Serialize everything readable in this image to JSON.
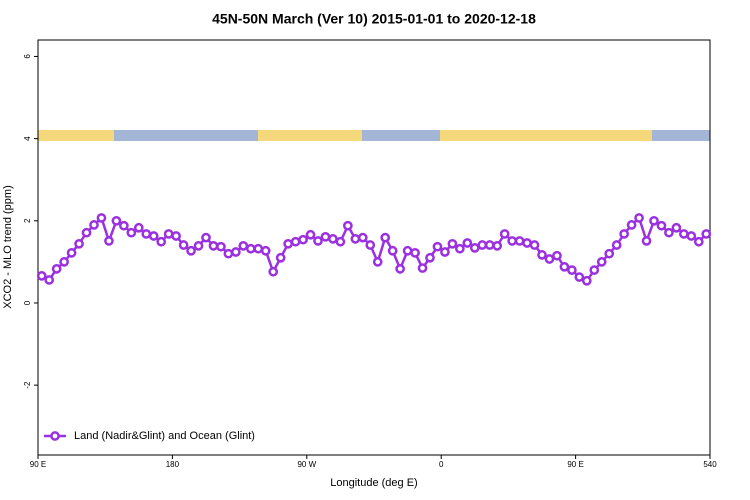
{
  "chart_data": {
    "type": "line",
    "title": "45N-50N March (Ver 10)   2015-01-01 to 2020-12-18",
    "x_label": "Longitude (deg E)",
    "y_label": "XCO2 - MLO trend (ppm)",
    "xlim": [
      90,
      540
    ],
    "ylim": [
      -3.7,
      6.4
    ],
    "xticks": [
      {
        "value": 90,
        "label": "90 E"
      },
      180,
      {
        "value": 270,
        "label": "90 W"
      },
      {
        "value": 360,
        "label": "0"
      },
      {
        "value": 450,
        "label": "90 E"
      },
      540
    ],
    "yticks": [
      -2,
      0,
      2,
      4,
      6
    ],
    "legend": "bottom-left",
    "x": [
      92.5,
      97.5,
      102.5,
      107.5,
      112.5,
      117.5,
      122.5,
      127.5,
      132.5,
      137.5,
      142.5,
      147.5,
      152.5,
      157.5,
      162.5,
      167.5,
      172.5,
      177.5,
      182.5,
      187.5,
      192.5,
      197.5,
      202.5,
      207.5,
      212.5,
      217.5,
      222.5,
      227.5,
      232.5,
      237.5,
      242.5,
      247.5,
      252.5,
      257.5,
      262.5,
      267.5,
      272.5,
      277.5,
      282.5,
      287.5,
      292.5,
      297.5,
      302.5,
      307.5,
      312.5,
      317.5,
      322.5,
      327.5,
      332.5,
      337.5,
      342.5,
      347.5,
      352.5,
      357.5,
      362.5,
      367.5,
      372.5,
      377.5,
      382.5,
      387.5,
      392.5,
      397.5,
      402.5,
      407.5,
      412.5,
      417.5,
      422.5,
      427.5,
      432.5,
      437.5,
      442.5,
      447.5,
      452.5,
      457.5,
      462.5,
      467.5,
      472.5,
      477.5,
      482.5,
      487.5,
      492.5,
      497.5,
      502.5,
      507.5,
      512.5,
      517.5,
      522.5,
      527.5,
      532.5,
      537.5
    ],
    "series": [
      {
        "name": "Land (Nadir&Glint) and Ocean (Glint)",
        "color": "#9b30e0",
        "values": [
          0.66,
          0.56,
          0.83,
          1.0,
          1.22,
          1.44,
          1.71,
          1.9,
          2.07,
          1.51,
          2.0,
          1.88,
          1.71,
          1.83,
          1.68,
          1.63,
          1.49,
          1.68,
          1.63,
          1.41,
          1.27,
          1.39,
          1.59,
          1.39,
          1.37,
          1.2,
          1.24,
          1.39,
          1.32,
          1.32,
          1.27,
          0.76,
          1.1,
          1.44,
          1.49,
          1.54,
          1.66,
          1.51,
          1.61,
          1.56,
          1.49,
          1.88,
          1.56,
          1.59,
          1.41,
          1.0,
          1.59,
          1.27,
          0.83,
          1.27,
          1.22,
          0.85,
          1.1,
          1.37,
          1.24,
          1.44,
          1.32,
          1.46,
          1.34,
          1.41,
          1.41,
          1.39,
          1.68,
          1.51,
          1.51,
          1.46,
          1.41,
          1.17,
          1.07,
          1.15,
          0.88,
          0.8,
          0.63,
          0.54,
          0.8,
          1.0,
          1.2,
          1.41,
          1.68,
          1.9,
          2.07,
          1.51,
          2.0,
          1.88,
          1.71,
          1.83,
          1.68,
          1.63,
          1.49,
          1.68
        ]
      }
    ]
  }
}
